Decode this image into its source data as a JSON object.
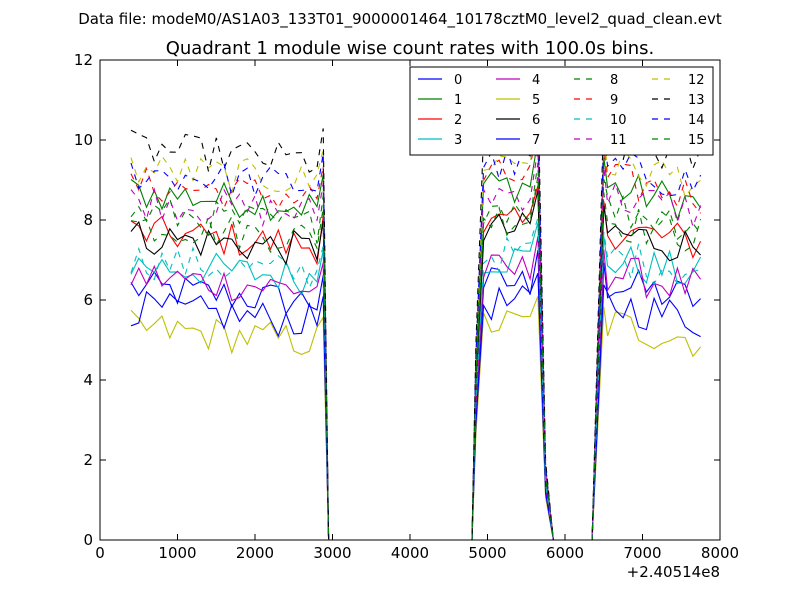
{
  "figure": {
    "suptitle": "Data file: modeM0/AS1A03_133T01_9000001464_10178cztM0_level2_quad_clean.evt"
  },
  "chart_data": {
    "type": "line",
    "title": "Quadrant 1 module wise count rates with 100.0s bins.",
    "xlabel": "",
    "ylabel": "",
    "x_offset_label": "+2.40514e8",
    "xlim": [
      0,
      8000
    ],
    "ylim": [
      0,
      12
    ],
    "xticks": [
      "0",
      "1000",
      "2000",
      "3000",
      "4000",
      "5000",
      "6000",
      "7000",
      "8000"
    ],
    "yticks": [
      "0",
      "2",
      "4",
      "6",
      "8",
      "10",
      "12"
    ],
    "grid": false,
    "legend": {
      "placement": "top-right",
      "columns": 4
    },
    "series": [
      {
        "name": "0",
        "color": "#0000ff",
        "dash": "solid",
        "base": 6.3
      },
      {
        "name": "1",
        "color": "#008000",
        "dash": "solid",
        "base": 8.7
      },
      {
        "name": "2",
        "color": "#ff0000",
        "dash": "solid",
        "base": 7.7
      },
      {
        "name": "3",
        "color": "#00bfbf",
        "dash": "solid",
        "base": 6.9
      },
      {
        "name": "4",
        "color": "#bf00bf",
        "dash": "solid",
        "base": 6.6
      },
      {
        "name": "5",
        "color": "#bfbf00",
        "dash": "solid",
        "base": 5.3
      },
      {
        "name": "6",
        "color": "#000000",
        "dash": "solid",
        "base": 7.6
      },
      {
        "name": "7",
        "color": "#0000ff",
        "dash": "solid",
        "base": 5.8
      },
      {
        "name": "8",
        "color": "#008000",
        "dash": "dashed",
        "base": 7.9
      },
      {
        "name": "9",
        "color": "#ff0000",
        "dash": "dashed",
        "base": 8.9
      },
      {
        "name": "10",
        "color": "#00bfbf",
        "dash": "dashed",
        "base": 7.0
      },
      {
        "name": "11",
        "color": "#bf00bf",
        "dash": "dashed",
        "base": 8.5
      },
      {
        "name": "12",
        "color": "#bfbf00",
        "dash": "dashed",
        "base": 9.3
      },
      {
        "name": "13",
        "color": "#000000",
        "dash": "dashed",
        "base": 9.8
      },
      {
        "name": "14",
        "color": "#0000ff",
        "dash": "dashed",
        "base": 9.2
      },
      {
        "name": "15",
        "color": "#008000",
        "dash": "dashed",
        "base": 8.2
      }
    ],
    "segments": [
      {
        "start": 400,
        "end": 2800,
        "step": 100
      },
      {
        "start": 4850,
        "end": 5650,
        "step": 100
      },
      {
        "start": 6400,
        "end": 7750,
        "step": 100
      }
    ],
    "spikes": [
      {
        "x": 2880,
        "factor": 1.05
      },
      {
        "x": 5650,
        "factor": 1.15
      },
      {
        "x": 6500,
        "factor": 1.1
      }
    ],
    "zero_x": [
      2950,
      4800,
      5850,
      6350
    ]
  }
}
